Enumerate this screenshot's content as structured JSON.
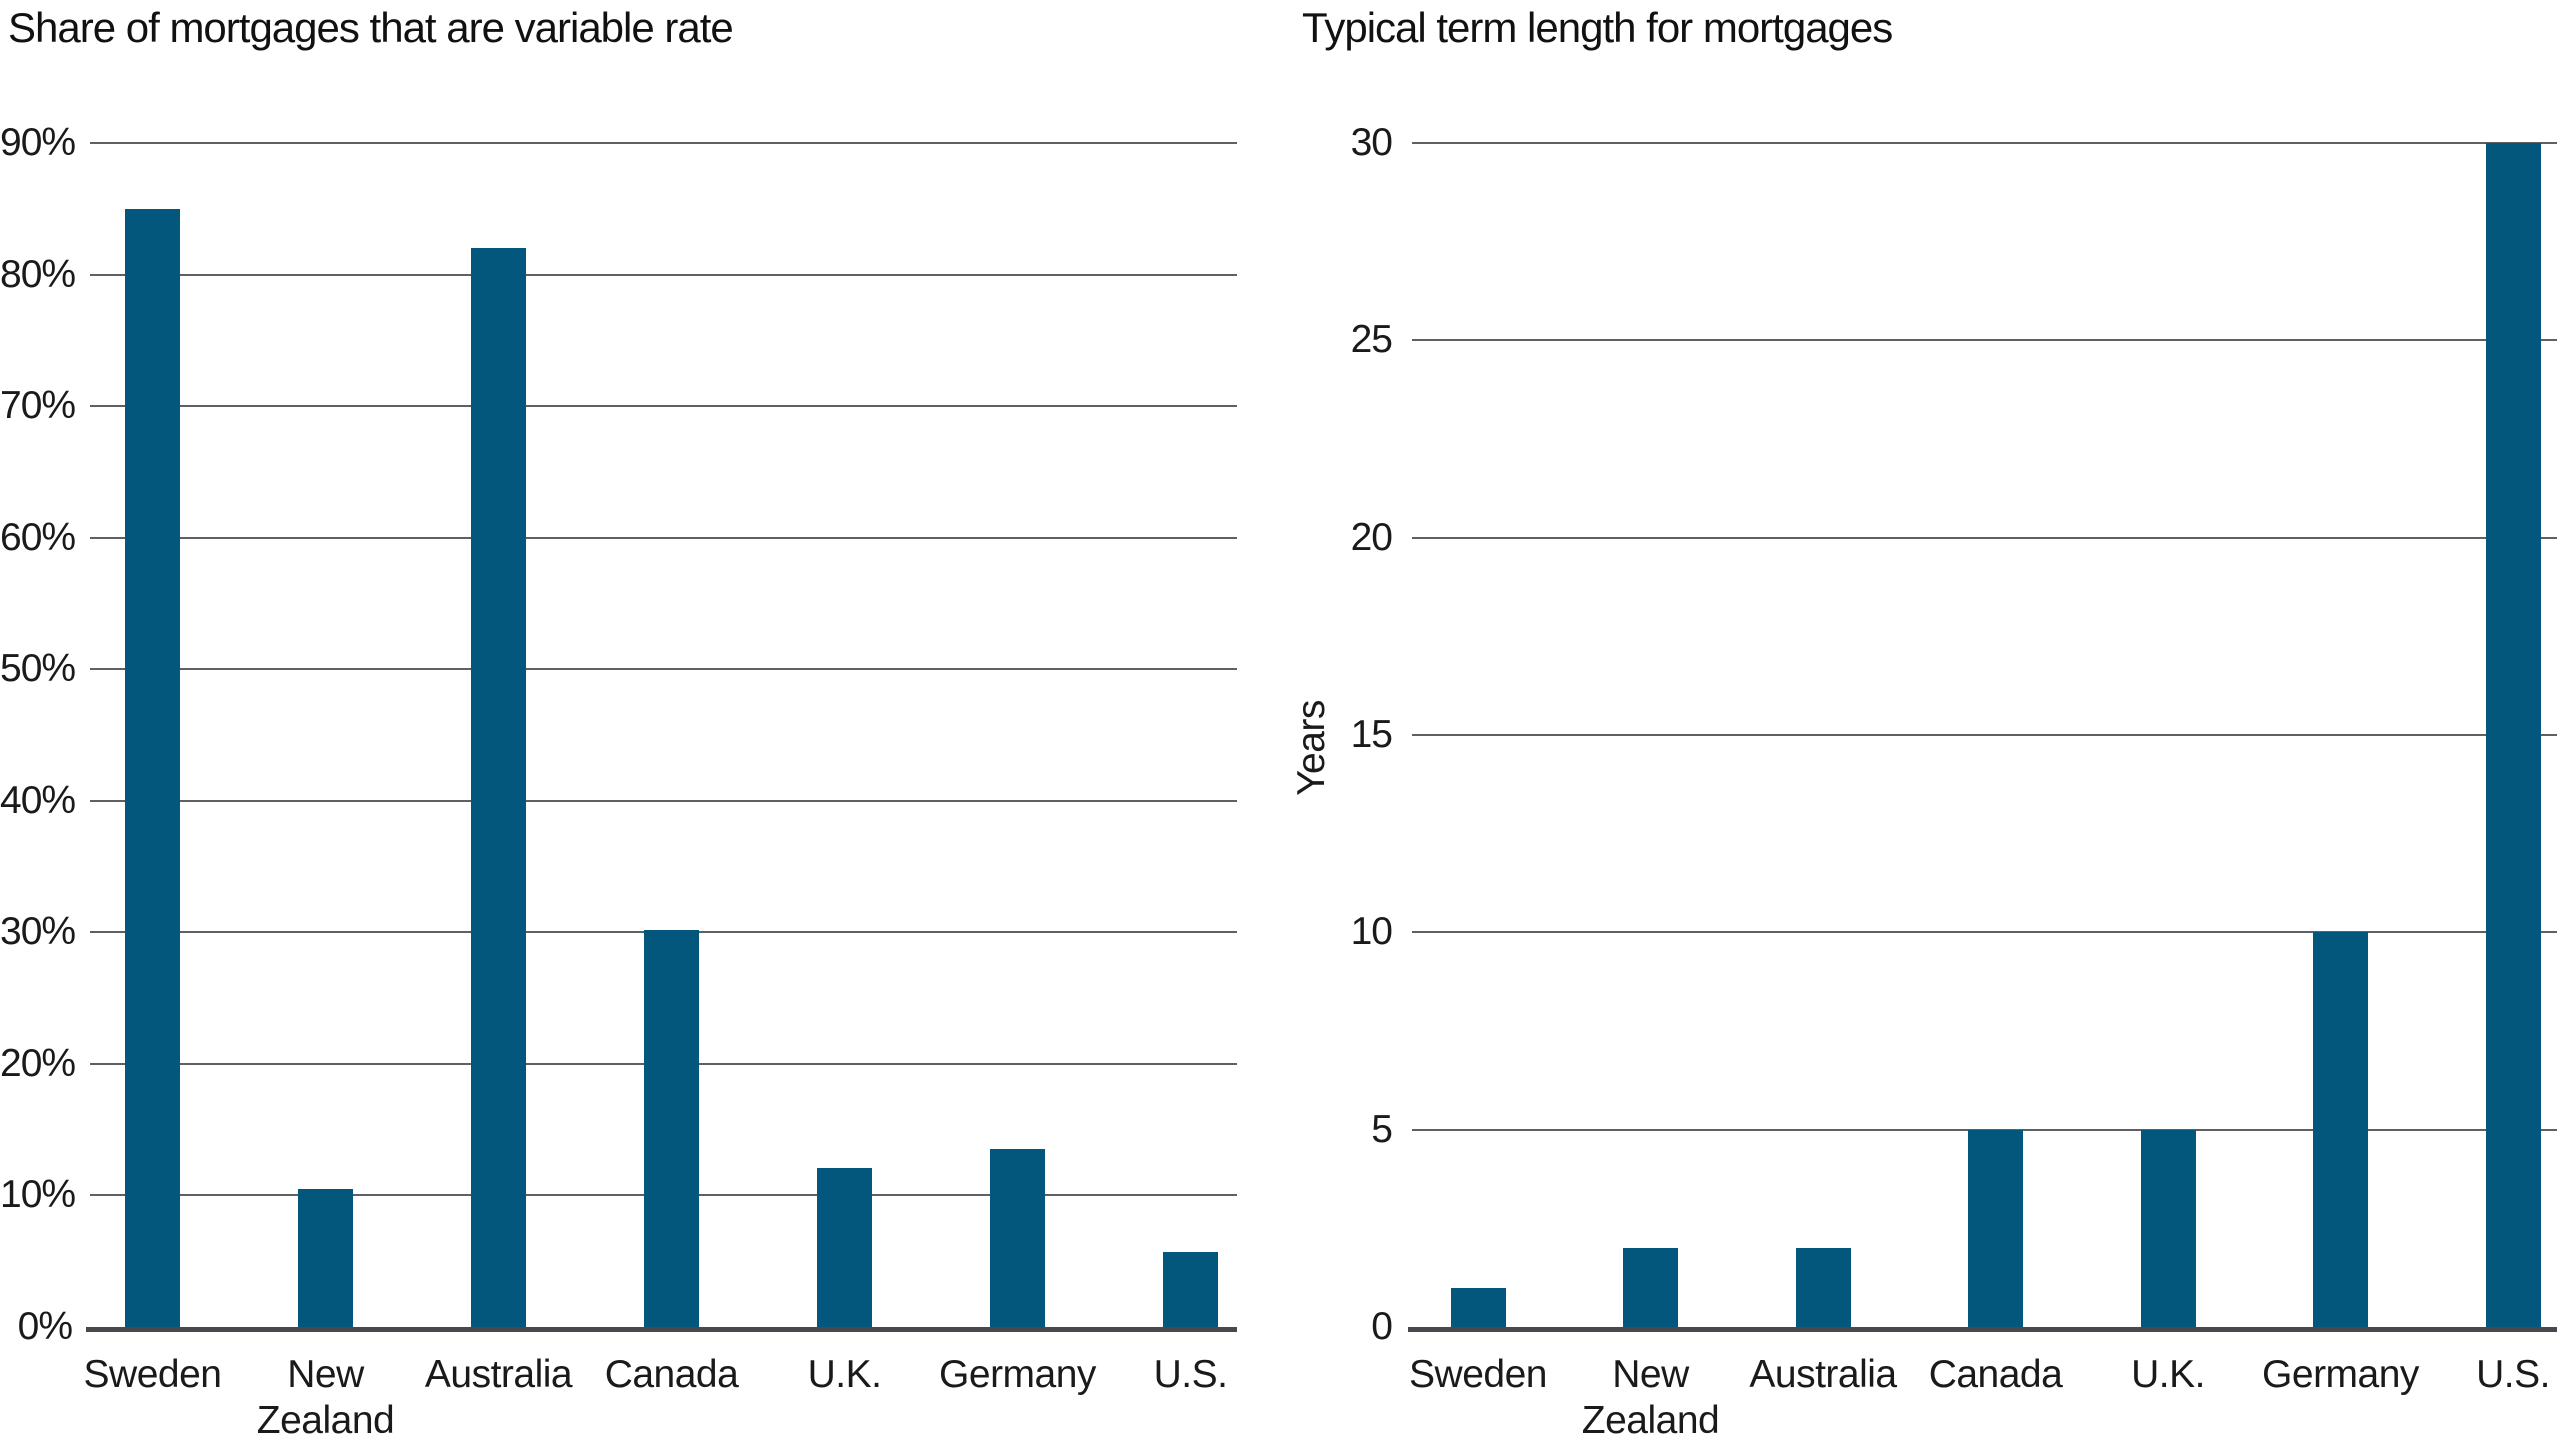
{
  "figure": {
    "background": "#ffffff",
    "description": "Two side-by-side bar charts comparing mortgage characteristics across countries"
  },
  "chart_data": [
    {
      "type": "bar",
      "title": "Share of mortgages that are variable rate",
      "categories": [
        "Sweden",
        "New Zealand",
        "Australia",
        "Canada",
        "U.K.",
        "Germany",
        "U.S."
      ],
      "xtick_labels": [
        "Sweden",
        "New\nZealand",
        "Australia",
        "Canada",
        "U.K.",
        "Germany",
        "U.S."
      ],
      "values": [
        85,
        10.5,
        82,
        30.2,
        12.1,
        13.5,
        5.7
      ],
      "value_suffix": "%",
      "ylim": [
        0,
        90
      ],
      "ytick_step": 10,
      "ytick_labels": [
        "90%",
        "80%",
        "70%",
        "60%",
        "50%",
        "40%",
        "30%",
        "20%",
        "10%",
        "0%"
      ],
      "ylabel": "",
      "legend": "none",
      "grid": "horizontal"
    },
    {
      "type": "bar",
      "title": "Typical term length for mortgages",
      "categories": [
        "Sweden",
        "New Zealand",
        "Australia",
        "Canada",
        "U.K.",
        "Germany",
        "U.S."
      ],
      "xtick_labels": [
        "Sweden",
        "New\nZealand",
        "Australia",
        "Canada",
        "U.K.",
        "Germany",
        "U.S."
      ],
      "values": [
        1,
        2,
        2,
        5,
        5,
        10,
        30
      ],
      "value_suffix": " years",
      "ylim": [
        0,
        30
      ],
      "ytick_step": 5,
      "ytick_labels": [
        "30",
        "25",
        "20",
        "15",
        "10",
        "5",
        "0"
      ],
      "ylabel": "Years",
      "legend": "none",
      "grid": "horizontal"
    }
  ],
  "colors": {
    "bar": "#04577c",
    "gridline": "#5d6064",
    "axis": "#47494c",
    "text": "#1a1a1a"
  }
}
